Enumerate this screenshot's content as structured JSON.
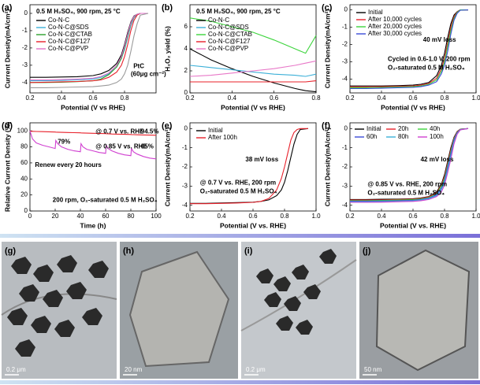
{
  "chart_data": [
    {
      "type": "line",
      "panel": "(a)",
      "title": "0.5 M H₂SO₄, 900 rpm, 25 °C",
      "xlabel": "Potential (V vs RHE)",
      "ylabel": "Current Density(mA/cm²)",
      "x": [
        0.2,
        0.3,
        0.4,
        0.5,
        0.6,
        0.65,
        0.7,
        0.75,
        0.78,
        0.8,
        0.82,
        0.84,
        0.86,
        0.88,
        0.9,
        0.95
      ],
      "series": [
        {
          "name": "Co-N-C",
          "color": "#000000",
          "values": [
            -3.7,
            -3.7,
            -3.68,
            -3.66,
            -3.6,
            -3.5,
            -3.3,
            -2.9,
            -2.4,
            -1.8,
            -1.1,
            -0.5,
            -0.15,
            -0.05,
            0,
            0
          ]
        },
        {
          "name": "Co-N-C@SDS",
          "color": "#3cb0d8",
          "values": [
            -3.9,
            -3.9,
            -3.88,
            -3.85,
            -3.8,
            -3.7,
            -3.5,
            -3.1,
            -2.6,
            -2.1,
            -1.4,
            -0.7,
            -0.25,
            -0.08,
            0,
            0
          ]
        },
        {
          "name": "Co-N-C@CTAB",
          "color": "#2ca02c",
          "values": [
            -4.0,
            -4.0,
            -3.98,
            -3.95,
            -3.9,
            -3.8,
            -3.55,
            -3.1,
            -2.6,
            -2.0,
            -1.3,
            -0.6,
            -0.2,
            -0.05,
            0,
            0
          ]
        },
        {
          "name": "Co-N-C@F127",
          "color": "#e8202a",
          "values": [
            -4.0,
            -3.98,
            -3.96,
            -3.94,
            -3.9,
            -3.85,
            -3.7,
            -3.4,
            -3.0,
            -2.5,
            -1.8,
            -1.0,
            -0.4,
            -0.1,
            0,
            0
          ]
        },
        {
          "name": "Co-N-C@PVP",
          "color": "#e070c8",
          "values": [
            -3.85,
            -3.85,
            -3.83,
            -3.8,
            -3.75,
            -3.65,
            -3.45,
            -3.0,
            -2.5,
            -1.9,
            -1.2,
            -0.55,
            -0.18,
            -0.05,
            0,
            0
          ]
        },
        {
          "color": "#9a9a9a",
          "values": [
            -4.3,
            -4.3,
            -4.28,
            -4.26,
            -4.24,
            -4.2,
            -4.15,
            -4.0,
            -3.8,
            -3.5,
            -3.0,
            -2.2,
            -1.3,
            -0.6,
            -0.1,
            0
          ]
        }
      ],
      "annotations": [
        {
          "text": "PtC",
          "color": "#666666"
        },
        {
          "text": "(60μg cm⁻²)",
          "color": "#666666"
        }
      ],
      "xlim": [
        0.2,
        1.0
      ],
      "ylim": [
        -4.6,
        0.5
      ],
      "xticks": [
        0.2,
        0.4,
        0.6,
        0.8
      ],
      "yticks": [
        -4,
        -3,
        -2,
        -1,
        0
      ]
    },
    {
      "type": "line",
      "panel": "(b)",
      "title": "0.5 M H₂SO₄, 900 rpm, 25 °C",
      "xlabel": "Potential (V vs RHE)",
      "ylabel": "H₂O₂ yield (%)",
      "x": [
        0.2,
        0.3,
        0.4,
        0.5,
        0.6,
        0.7,
        0.75,
        0.8
      ],
      "series": [
        {
          "name": "Co-N-C",
          "color": "#000000",
          "values": [
            4,
            3,
            2.2,
            1.5,
            0.9,
            0.4,
            0.2,
            0.1
          ]
        },
        {
          "name": "Co-N-C@SDS",
          "color": "#3cb0d8",
          "values": [
            2.5,
            2.3,
            2.1,
            1.9,
            1.7,
            1.6,
            1.5,
            1.7
          ]
        },
        {
          "name": "Co-N-C@CTAB",
          "color": "#3cd43c",
          "values": [
            6.8,
            6.5,
            6.0,
            5.5,
            4.8,
            4.0,
            3.6,
            5.2
          ]
        },
        {
          "name": "Co-N-C@F127",
          "color": "#e8202a",
          "values": [
            1,
            1,
            1,
            1,
            1,
            1,
            1,
            1.1
          ]
        },
        {
          "name": "Co-N-C@PVP",
          "color": "#e878c8",
          "values": [
            1.5,
            1.6,
            1.8,
            2.0,
            2.2,
            2.5,
            2.7,
            2.9
          ]
        }
      ],
      "annotations": [],
      "xlim": [
        0.2,
        0.8
      ],
      "ylim": [
        0,
        8
      ],
      "xticks": [
        0.2,
        0.4,
        0.6,
        0.8
      ],
      "yticks": [
        0,
        2,
        4,
        6
      ]
    },
    {
      "type": "line",
      "panel": "(c)",
      "xlabel": "Potential (V vs RHE)",
      "ylabel": "Current Density(mA/cm²)",
      "x": [
        0.2,
        0.3,
        0.4,
        0.5,
        0.6,
        0.65,
        0.7,
        0.75,
        0.78,
        0.8,
        0.82,
        0.84,
        0.86,
        0.88,
        0.9,
        0.95
      ],
      "series": [
        {
          "name": "Initial",
          "color": "#000000",
          "values": [
            -4.4,
            -4.4,
            -4.4,
            -4.38,
            -4.35,
            -4.3,
            -4.2,
            -3.8,
            -3.2,
            -2.5,
            -1.6,
            -0.8,
            -0.3,
            -0.1,
            0,
            0
          ]
        },
        {
          "name": "After 10,000 cycles",
          "color": "#e8202a",
          "values": [
            -4.45,
            -4.45,
            -4.44,
            -4.42,
            -4.4,
            -4.35,
            -4.25,
            -3.95,
            -3.4,
            -2.8,
            -1.9,
            -1.0,
            -0.4,
            -0.12,
            0,
            0
          ]
        },
        {
          "name": "After 20,000 cycles",
          "color": "#3cd43c",
          "values": [
            -4.5,
            -4.5,
            -4.48,
            -4.46,
            -4.44,
            -4.4,
            -4.3,
            -4.05,
            -3.55,
            -3.0,
            -2.1,
            -1.2,
            -0.5,
            -0.15,
            0,
            0
          ]
        },
        {
          "name": "After 30,000 cycles",
          "color": "#3a4bd8",
          "values": [
            -4.55,
            -4.55,
            -4.53,
            -4.5,
            -4.48,
            -4.44,
            -4.35,
            -4.15,
            -3.7,
            -3.2,
            -2.4,
            -1.4,
            -0.6,
            -0.2,
            -0.02,
            0
          ]
        }
      ],
      "annotations": [
        {
          "text": "40 mV loss",
          "color": "#22aa22"
        },
        {
          "text": "Cycled in 0.6-1.0 V, 200 rpm",
          "color": "#000000"
        },
        {
          "text": "O₂-saturated 0.5 M H₂SO₄",
          "color": "#000000"
        }
      ],
      "xlim": [
        0.2,
        1.0
      ],
      "ylim": [
        -4.8,
        0.3
      ],
      "xticks": [
        0.2,
        0.4,
        0.6,
        0.8,
        {
          "value": 1,
          "label": "1.0"
        }
      ],
      "yticks": [
        -4,
        -3,
        -2,
        -1,
        0
      ]
    },
    {
      "type": "line",
      "panel": "(d)",
      "xlabel": "Time (h)",
      "ylabel": "Relative Current Density (%)",
      "x": [
        0,
        2,
        5,
        10,
        15,
        20,
        20.5,
        22,
        25,
        30,
        35,
        40,
        40.5,
        42,
        45,
        50,
        55,
        60,
        60.5,
        62,
        65,
        70,
        75,
        80,
        80.5,
        82,
        85,
        90,
        95,
        100
      ],
      "series": [
        {
          "color": "#e8202a",
          "values": [
            99.5,
            99.4,
            99.2,
            99,
            98.8,
            98.5,
            98.4,
            98.3,
            98.1,
            97.9,
            97.7,
            97.5,
            97.4,
            97.3,
            97.1,
            96.9,
            96.7,
            96.5,
            96.4,
            96.3,
            96.1,
            95.9,
            95.7,
            95.5,
            95.4,
            95.3,
            95.1,
            94.9,
            94.7,
            94.5
          ]
        },
        {
          "color": "#d040d0",
          "values": [
            100,
            90,
            85,
            82,
            80,
            78,
            88,
            84,
            80,
            77,
            75,
            74,
            84,
            80,
            77,
            75,
            73,
            72,
            82,
            78,
            75,
            72,
            70,
            69,
            78,
            74,
            71,
            68,
            66,
            65
          ]
        }
      ],
      "annotations": [
        {
          "text": "@ 0.7 V vs. RHE",
          "color": "#000000"
        },
        {
          "text": "94.5%",
          "color": "#e8202a"
        },
        {
          "text": "79%",
          "color": "#d040d0"
        },
        {
          "text": "@ 0.85 V vs. RHE",
          "color": "#000000"
        },
        {
          "text": "65%",
          "color": "#d040d0"
        },
        {
          "text": "Renew every 20 hours",
          "color": "#000000"
        },
        {
          "text": "200 rpm, O₂-saturated 0.5 M H₂SO₄",
          "color": "#000000"
        }
      ],
      "xlim": [
        0,
        100
      ],
      "ylim": [
        0,
        110
      ],
      "xticks": [
        0,
        20,
        40,
        60,
        80,
        100
      ],
      "yticks": [
        0,
        20,
        40,
        60,
        80,
        100
      ]
    },
    {
      "type": "line",
      "panel": "(e)",
      "xlabel": "Potential (V vs. RHE)",
      "ylabel": "Current Density(mA/cm²)",
      "x": [
        0.2,
        0.3,
        0.4,
        0.5,
        0.6,
        0.65,
        0.7,
        0.75,
        0.78,
        0.8,
        0.82,
        0.84,
        0.86,
        0.88,
        0.9,
        0.95
      ],
      "series": [
        {
          "name": "Initial",
          "color": "#000000",
          "values": [
            -3.9,
            -3.9,
            -3.88,
            -3.86,
            -3.84,
            -3.8,
            -3.72,
            -3.5,
            -3.2,
            -2.8,
            -2.2,
            -1.5,
            -0.8,
            -0.3,
            -0.05,
            0
          ]
        },
        {
          "name": "After 100h",
          "color": "#e8202a",
          "values": [
            -3.92,
            -3.92,
            -3.9,
            -3.88,
            -3.85,
            -3.8,
            -3.65,
            -3.2,
            -2.6,
            -2.0,
            -1.3,
            -0.6,
            -0.2,
            -0.05,
            0,
            0
          ]
        }
      ],
      "annotations": [
        {
          "text": "38 mV loss",
          "color": "#22aa22"
        },
        {
          "text": "@ 0.7 V vs. RHE, 200 rpm",
          "color": "#000000"
        },
        {
          "text": "O₂-saturated 0.5 M H₂SO₄",
          "color": "#000000"
        }
      ],
      "xlim": [
        0.2,
        1.0
      ],
      "ylim": [
        -4.3,
        0.3
      ],
      "xticks": [
        0.2,
        0.4,
        0.6,
        0.8,
        {
          "value": 1,
          "label": "1.0"
        }
      ],
      "yticks": [
        -4,
        -3,
        -2,
        -1,
        0
      ]
    },
    {
      "type": "line",
      "panel": "(f)",
      "xlabel": "Potential (V vs. RHE)",
      "ylabel": "Current Density(mA/cm²)",
      "x": [
        0.2,
        0.3,
        0.4,
        0.5,
        0.6,
        0.65,
        0.7,
        0.75,
        0.78,
        0.8,
        0.82,
        0.84,
        0.86,
        0.88,
        0.9,
        0.95
      ],
      "series": [
        {
          "name": "Initial",
          "color": "#000000",
          "values": [
            -3.7,
            -3.7,
            -3.69,
            -3.68,
            -3.66,
            -3.62,
            -3.55,
            -3.3,
            -2.9,
            -2.4,
            -1.7,
            -1.0,
            -0.45,
            -0.15,
            -0.03,
            0
          ]
        },
        {
          "name": "20h",
          "color": "#e8202a",
          "values": [
            -3.73,
            -3.73,
            -3.72,
            -3.7,
            -3.68,
            -3.64,
            -3.57,
            -3.35,
            -2.95,
            -2.5,
            -1.8,
            -1.1,
            -0.5,
            -0.17,
            -0.03,
            0
          ]
        },
        {
          "name": "40h",
          "color": "#3cd43c",
          "values": [
            -3.76,
            -3.76,
            -3.75,
            -3.73,
            -3.71,
            -3.67,
            -3.6,
            -3.4,
            -3.0,
            -2.6,
            -1.9,
            -1.2,
            -0.55,
            -0.2,
            -0.04,
            0
          ]
        },
        {
          "name": "60h",
          "color": "#3a4bd8",
          "values": [
            -3.79,
            -3.79,
            -3.78,
            -3.76,
            -3.74,
            -3.7,
            -3.63,
            -3.45,
            -3.1,
            -2.7,
            -2.0,
            -1.3,
            -0.6,
            -0.22,
            -0.05,
            0
          ]
        },
        {
          "name": "80h",
          "color": "#3cb0d8",
          "values": [
            -3.82,
            -3.82,
            -3.81,
            -3.79,
            -3.77,
            -3.73,
            -3.66,
            -3.5,
            -3.2,
            -2.8,
            -2.15,
            -1.45,
            -0.7,
            -0.26,
            -0.06,
            0
          ]
        },
        {
          "name": "100h",
          "color": "#d040d0",
          "values": [
            -3.85,
            -3.85,
            -3.84,
            -3.82,
            -3.8,
            -3.76,
            -3.7,
            -3.55,
            -3.3,
            -2.95,
            -2.3,
            -1.6,
            -0.8,
            -0.3,
            -0.07,
            0
          ]
        }
      ],
      "annotations": [
        {
          "text": "42 mV loss",
          "color": "#22aa22"
        },
        {
          "text": "@ 0.85 V vs. RHE, 200 rpm",
          "color": "#000000"
        },
        {
          "text": "O₂-saturated 0.5 M H₂SO₄",
          "color": "#000000"
        }
      ],
      "xlim": [
        0.2,
        1.0
      ],
      "ylim": [
        -4.3,
        0.3
      ],
      "xticks": [
        0.2,
        0.4,
        0.6,
        0.8,
        {
          "value": 1,
          "label": "1.0"
        }
      ],
      "yticks": [
        -4,
        -3,
        -2,
        -1,
        0
      ]
    }
  ],
  "images": [
    {
      "label": "(g)",
      "scale": "0.2 μm"
    },
    {
      "label": "(h)",
      "scale": "20 nm"
    },
    {
      "label": "(i)",
      "scale": "0.2 μm"
    },
    {
      "label": "(j)",
      "scale": "50 nm"
    }
  ]
}
